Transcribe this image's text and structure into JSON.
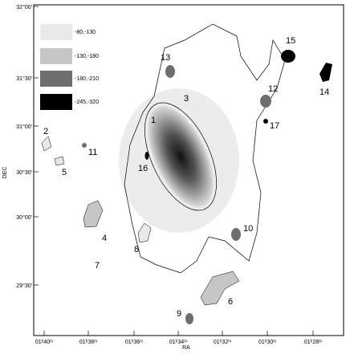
{
  "legend": [
    {
      "label": "-80,-130",
      "color": "#e8e8e8"
    },
    {
      "label": "-130,-180",
      "color": "#c6c6c6"
    },
    {
      "label": "-180,-210",
      "color": "#6e6e6e"
    },
    {
      "label": "-245,-320",
      "color": "#000000"
    }
  ],
  "axes": {
    "x_label": "RA",
    "y_label": "DEC",
    "x_ticks": [
      "01ʰ40ᵐ",
      "01ʰ38ᵐ",
      "01ʰ36ᵐ",
      "01ʰ34ᵐ",
      "01ʰ32ᵐ",
      "01ʰ30ᵐ",
      "01ʰ28ᵐ"
    ],
    "y_ticks": [
      "32°00'",
      "31°30'",
      "31°00'",
      "30°30'",
      "30°00'",
      "29°30'"
    ]
  },
  "regions": [
    "1",
    "2",
    "3",
    "4",
    "5",
    "6",
    "7",
    "8",
    "9",
    "10",
    "11",
    "12",
    "13",
    "14",
    "15",
    "16",
    "17"
  ]
}
